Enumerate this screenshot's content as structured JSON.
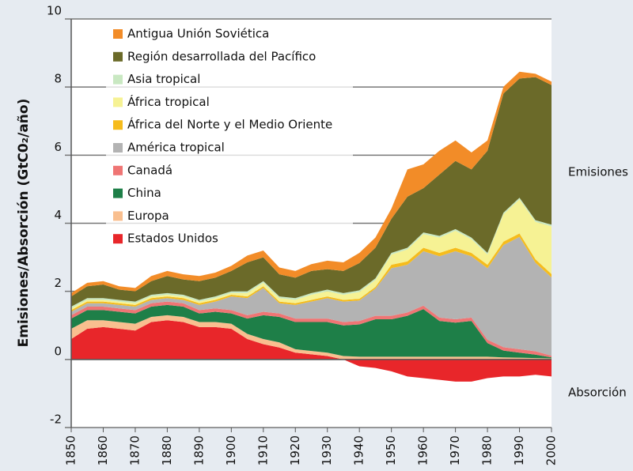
{
  "chart_data": {
    "type": "stacked-area",
    "y_label": "Emisiones/Absorción (GtC0₂/año)",
    "annotations": [
      "Emisiones",
      "Absorción"
    ],
    "x": [
      1850,
      1855,
      1860,
      1865,
      1870,
      1875,
      1880,
      1885,
      1890,
      1895,
      1900,
      1905,
      1910,
      1915,
      1920,
      1925,
      1930,
      1935,
      1940,
      1945,
      1950,
      1955,
      1960,
      1965,
      1970,
      1975,
      1980,
      1985,
      1990,
      1995,
      2000
    ],
    "xlim": [
      1850,
      2000
    ],
    "xticks": [
      1850,
      1860,
      1870,
      1880,
      1890,
      1900,
      1910,
      1920,
      1930,
      1940,
      1950,
      1960,
      1970,
      1980,
      1990,
      2000
    ],
    "ylim": [
      -2,
      10
    ],
    "yticks": [
      -2,
      0,
      2,
      4,
      6,
      8,
      10
    ],
    "grid": true,
    "legend": "upper left",
    "series": [
      {
        "name": "Estados Unidos",
        "color": "#e8262a",
        "values": [
          0.6,
          0.9,
          0.95,
          0.9,
          0.85,
          1.1,
          1.15,
          1.1,
          0.95,
          0.95,
          0.9,
          0.6,
          0.45,
          0.35,
          0.2,
          0.15,
          0.1,
          0,
          -0.2,
          -0.25,
          -0.35,
          -0.5,
          -0.55,
          -0.6,
          -0.65,
          -0.65,
          -0.55,
          -0.5,
          -0.5,
          -0.45,
          -0.5
        ]
      },
      {
        "name": "Europa",
        "color": "#f9bf8f",
        "values": [
          0.3,
          0.25,
          0.2,
          0.2,
          0.2,
          0.15,
          0.15,
          0.15,
          0.15,
          0.15,
          0.15,
          0.15,
          0.15,
          0.15,
          0.1,
          0.1,
          0.1,
          0.1,
          0.08,
          0.08,
          0.08,
          0.08,
          0.08,
          0.08,
          0.08,
          0.08,
          0.08,
          0.06,
          0.05,
          0.04,
          0.03
        ]
      },
      {
        "name": "China",
        "color": "#1e7f48",
        "values": [
          0.3,
          0.3,
          0.3,
          0.3,
          0.3,
          0.3,
          0.3,
          0.3,
          0.25,
          0.3,
          0.3,
          0.45,
          0.7,
          0.75,
          0.8,
          0.85,
          0.9,
          0.9,
          0.95,
          1.1,
          1.1,
          1.2,
          1.4,
          1.05,
          1.0,
          1.05,
          0.4,
          0.2,
          0.15,
          0.1,
          0.03
        ]
      },
      {
        "name": "Canadá",
        "color": "#ef7574",
        "values": [
          0.1,
          0.1,
          0.1,
          0.1,
          0.1,
          0.1,
          0.1,
          0.1,
          0.1,
          0.1,
          0.1,
          0.1,
          0.1,
          0.1,
          0.1,
          0.1,
          0.1,
          0.1,
          0.1,
          0.1,
          0.1,
          0.1,
          0.1,
          0.1,
          0.1,
          0.1,
          0.1,
          0.1,
          0.1,
          0.1,
          0.05
        ]
      },
      {
        "name": "América tropical",
        "color": "#b3b3b3",
        "values": [
          0.1,
          0.1,
          0.1,
          0.1,
          0.1,
          0.1,
          0.1,
          0.1,
          0.15,
          0.2,
          0.4,
          0.5,
          0.7,
          0.3,
          0.4,
          0.5,
          0.6,
          0.6,
          0.6,
          0.8,
          1.4,
          1.4,
          1.6,
          1.8,
          2.0,
          1.8,
          2.1,
          3.0,
          3.3,
          2.6,
          2.3
        ]
      },
      {
        "name": "África del Norte y el Medio Oriente",
        "color": "#f6bc1c",
        "values": [
          0.05,
          0.05,
          0.05,
          0.05,
          0.05,
          0.05,
          0.05,
          0.05,
          0.05,
          0.05,
          0.05,
          0.05,
          0.05,
          0.05,
          0.05,
          0.05,
          0.05,
          0.05,
          0.05,
          0.05,
          0.1,
          0.1,
          0.1,
          0.1,
          0.1,
          0.1,
          0.1,
          0.1,
          0.1,
          0.1,
          0.1
        ]
      },
      {
        "name": "África tropical",
        "color": "#f6f294",
        "values": [
          0.05,
          0.05,
          0.05,
          0.05,
          0.05,
          0.05,
          0.05,
          0.05,
          0.05,
          0.05,
          0.05,
          0.1,
          0.1,
          0.1,
          0.1,
          0.15,
          0.15,
          0.15,
          0.2,
          0.2,
          0.3,
          0.35,
          0.4,
          0.45,
          0.5,
          0.4,
          0.3,
          0.8,
          1.0,
          1.1,
          1.4
        ]
      },
      {
        "name": "Asia tropical",
        "color": "#c9e8c2",
        "values": [
          0.05,
          0.05,
          0.05,
          0.05,
          0.05,
          0.05,
          0.05,
          0.05,
          0.05,
          0.05,
          0.05,
          0.05,
          0.05,
          0.05,
          0.05,
          0.05,
          0.05,
          0.05,
          0.05,
          0.05,
          0.05,
          0.05,
          0.05,
          0.05,
          0.05,
          0.05,
          0.05,
          0.05,
          0.05,
          0.05,
          0.05
        ]
      },
      {
        "name": "Región desarrollada del Pacífico",
        "color": "#6b6a29",
        "values": [
          0.3,
          0.35,
          0.4,
          0.3,
          0.3,
          0.4,
          0.5,
          0.45,
          0.55,
          0.55,
          0.6,
          0.85,
          0.7,
          0.65,
          0.6,
          0.65,
          0.6,
          0.65,
          0.8,
          0.9,
          1.0,
          1.5,
          1.3,
          1.8,
          2.0,
          2.0,
          3.0,
          3.5,
          3.5,
          4.2,
          4.1
        ]
      },
      {
        "name": "Antigua Unión Soviética",
        "color": "#f28c28",
        "values": [
          0.1,
          0.1,
          0.1,
          0.1,
          0.1,
          0.15,
          0.15,
          0.15,
          0.15,
          0.15,
          0.15,
          0.2,
          0.2,
          0.2,
          0.2,
          0.2,
          0.25,
          0.25,
          0.3,
          0.3,
          0.3,
          0.8,
          0.7,
          0.7,
          0.6,
          0.5,
          0.3,
          0.2,
          0.2,
          0.1,
          0.1
        ]
      }
    ]
  }
}
